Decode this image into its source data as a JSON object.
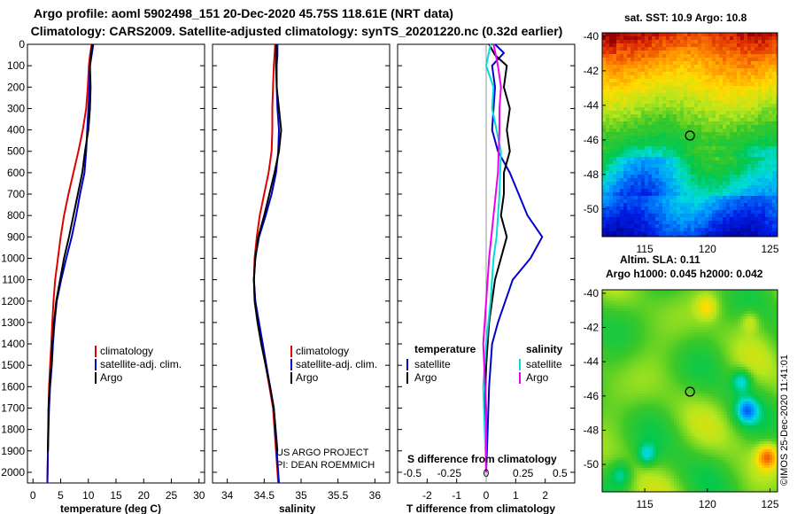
{
  "title_line1": "Argo profile: aoml 5902498_151 20-Dec-2020 45.75S 118.61E (NRT data)",
  "title_line2": "Climatology: CARS2009. Satellite-adjusted climatology: synTS_20201220.nc (0.32d earlier)",
  "credit": [
    "US ARGO PROJECT",
    "PI: DEAN ROEMMICH"
  ],
  "stamp": "©IMOS 25-Dec-2020 11:41:01",
  "colors": {
    "climatology": "#e00000",
    "satellite": "#0000cc",
    "argo": "#000000",
    "sat_salinity": "#00dddd",
    "argo_salinity": "#ee00ee"
  },
  "chart_data": [
    {
      "type": "line",
      "xlabel": "temperature (deg C)",
      "ylabel": "",
      "xlim": [
        -1,
        31
      ],
      "ylim": [
        2050,
        0
      ],
      "xticks": [
        "0",
        "5",
        "10",
        "15",
        "20",
        "25",
        "30"
      ],
      "yticks": [
        "0",
        "100",
        "200",
        "300",
        "400",
        "500",
        "600",
        "700",
        "800",
        "900",
        "1000",
        "1100",
        "1200",
        "1300",
        "1400",
        "1500",
        "1600",
        "1700",
        "1800",
        "1900",
        "2000"
      ],
      "legend": [
        "climatology",
        "satellite-adj. clim.",
        "Argo"
      ],
      "series": [
        {
          "name": "climatology",
          "color": "#e00000",
          "x": [
            10.6,
            10.3,
            10.1,
            9.9,
            9.6,
            9.0,
            8.2,
            7.3,
            6.4,
            5.6,
            5.0,
            4.5,
            4.0,
            3.7,
            3.5,
            3.3,
            3.1,
            2.9,
            2.8,
            2.7,
            2.6
          ],
          "y": [
            0,
            50,
            100,
            200,
            300,
            400,
            500,
            600,
            700,
            800,
            900,
            1000,
            1100,
            1200,
            1300,
            1400,
            1500,
            1600,
            1700,
            1900,
            2050
          ]
        },
        {
          "name": "satellite-adj. clim.",
          "color": "#0000cc",
          "x": [
            10.9,
            10.6,
            10.3,
            10.2,
            10.0,
            9.8,
            9.6,
            9.3,
            8.5,
            7.8,
            7.0,
            6.0,
            5.1,
            4.3,
            3.9,
            3.6,
            3.4,
            3.1,
            2.9,
            2.7,
            2.6
          ],
          "y": [
            0,
            50,
            100,
            200,
            300,
            400,
            500,
            600,
            700,
            800,
            900,
            1000,
            1100,
            1200,
            1300,
            1400,
            1500,
            1600,
            1700,
            1900,
            2050
          ]
        },
        {
          "name": "Argo",
          "color": "#000000",
          "x": [
            10.7,
            10.5,
            10.3,
            10.4,
            10.3,
            10.0,
            9.4,
            8.9,
            8.1,
            7.3,
            6.5,
            5.6,
            4.9,
            4.2,
            3.8,
            3.5,
            3.3,
            3.0,
            2.8,
            2.7
          ],
          "y": [
            0,
            50,
            100,
            200,
            300,
            400,
            500,
            600,
            700,
            800,
            900,
            1000,
            1100,
            1200,
            1300,
            1400,
            1500,
            1600,
            1700,
            1900
          ]
        }
      ]
    },
    {
      "type": "line",
      "xlabel": "salinity",
      "xlim": [
        33.8,
        36.2
      ],
      "ylim": [
        2050,
        0
      ],
      "xticks": [
        "34",
        "34.5",
        "35",
        "35.5",
        "36"
      ],
      "legend": [
        "climatology",
        "satellite-adj. clim.",
        "Argo"
      ],
      "series": [
        {
          "name": "climatology",
          "color": "#e00000",
          "x": [
            34.65,
            34.64,
            34.63,
            34.62,
            34.61,
            34.61,
            34.6,
            34.56,
            34.5,
            34.44,
            34.4,
            34.37,
            34.36,
            34.38,
            34.42,
            34.47,
            34.52,
            34.57,
            34.62,
            34.66,
            34.69
          ],
          "y": [
            0,
            50,
            100,
            200,
            300,
            400,
            500,
            600,
            700,
            800,
            900,
            1000,
            1100,
            1200,
            1300,
            1400,
            1500,
            1600,
            1700,
            1900,
            2050
          ]
        },
        {
          "name": "satellite-adj. clim.",
          "color": "#0000cc",
          "x": [
            34.68,
            34.68,
            34.67,
            34.67,
            34.68,
            34.7,
            34.69,
            34.66,
            34.6,
            34.52,
            34.43,
            34.38,
            34.36,
            34.38,
            34.43,
            34.48,
            34.53,
            34.58,
            34.63,
            34.67,
            34.7
          ],
          "y": [
            0,
            50,
            100,
            200,
            300,
            400,
            500,
            600,
            700,
            800,
            900,
            1000,
            1100,
            1200,
            1300,
            1400,
            1500,
            1600,
            1700,
            1900,
            2050
          ]
        },
        {
          "name": "Argo",
          "color": "#000000",
          "x": [
            34.66,
            34.66,
            34.66,
            34.67,
            34.7,
            34.73,
            34.7,
            34.64,
            34.57,
            34.5,
            34.42,
            34.38,
            34.36,
            34.37,
            34.41,
            34.46,
            34.52,
            34.58,
            34.63,
            34.68
          ],
          "y": [
            0,
            50,
            100,
            200,
            300,
            400,
            500,
            600,
            700,
            800,
            900,
            1000,
            1100,
            1200,
            1300,
            1400,
            1500,
            1600,
            1700,
            1900
          ]
        }
      ]
    },
    {
      "type": "line",
      "xlabel": "T difference from climatology",
      "xlabel_top": "S difference from climatology",
      "xlim": [
        -3,
        3
      ],
      "xlim_top": [
        -0.6,
        0.6
      ],
      "ylim": [
        2050,
        0
      ],
      "xticks": [
        "-2",
        "-1",
        "0",
        "1",
        "2"
      ],
      "xticks_top": [
        "-0.5",
        "-0.25",
        "0",
        "0.25",
        "0.5"
      ],
      "legend_temperature": {
        "heading": "temperature",
        "items": [
          "satellite",
          "Argo"
        ]
      },
      "legend_salinity": {
        "heading": "salinity",
        "items": [
          "satellite",
          "Argo"
        ]
      },
      "series": [
        {
          "name": "temperature satellite",
          "color": "#0000cc",
          "x": [
            0.3,
            0.6,
            0.2,
            0.3,
            0.2,
            0.4,
            0.8,
            1.1,
            1.4,
            1.9,
            1.5,
            0.9,
            0.4,
            0.2,
            0.1,
            0.05,
            0.0
          ],
          "y": [
            0,
            40,
            100,
            200,
            400,
            500,
            600,
            700,
            800,
            900,
            1000,
            1100,
            1300,
            1400,
            1600,
            1800,
            2000
          ]
        },
        {
          "name": "temperature Argo",
          "color": "#000000",
          "x": [
            0.1,
            0.3,
            0.7,
            0.6,
            0.8,
            0.7,
            0.8,
            0.6,
            0.6,
            0.5,
            0.7,
            0.3,
            0.1,
            0.0,
            -0.05,
            0.0
          ],
          "y": [
            0,
            50,
            100,
            200,
            300,
            400,
            500,
            600,
            700,
            800,
            900,
            1100,
            1300,
            1500,
            1700,
            2000
          ]
        },
        {
          "name": "salinity satellite",
          "color": "#00dddd",
          "x": [
            0.03,
            0.0,
            0.05,
            0.04,
            0.07,
            0.1,
            0.09,
            0.07,
            0.05,
            0.03,
            0.0,
            -0.02,
            -0.01,
            0.0
          ],
          "y": [
            0,
            100,
            200,
            300,
            400,
            500,
            700,
            900,
            1000,
            1200,
            1400,
            1600,
            1800,
            2000
          ]
        },
        {
          "name": "salinity Argo",
          "color": "#ee00ee",
          "x": [
            0.05,
            0.08,
            0.1,
            0.09,
            0.09,
            0.08,
            0.05,
            0.02,
            0.0,
            -0.02,
            0.0,
            0.0
          ],
          "y": [
            0,
            100,
            200,
            300,
            400,
            600,
            800,
            1000,
            1200,
            1400,
            1700,
            2000
          ]
        }
      ]
    },
    {
      "type": "heatmap",
      "title": "sat. SST: 10.9 Argo: 10.8",
      "xticks": [
        "115",
        "120",
        "125"
      ],
      "yticks": [
        "-40",
        "-42",
        "-44",
        "-46",
        "-48",
        "-50"
      ],
      "xlim": [
        111.6,
        125.6
      ],
      "ylim": [
        -51.6,
        -39.8
      ],
      "marker": {
        "lon": 118.61,
        "lat": -45.75
      }
    },
    {
      "type": "heatmap",
      "title": "Altim. SLA: 0.11",
      "subtitle": "Argo h1000: 0.045 h2000: 0.042",
      "xticks": [
        "115",
        "120",
        "125"
      ],
      "yticks": [
        "-40",
        "-42",
        "-44",
        "-46",
        "-48",
        "-50"
      ],
      "xlim": [
        111.6,
        125.6
      ],
      "ylim": [
        -51.6,
        -39.8
      ],
      "marker": {
        "lon": 118.61,
        "lat": -45.75
      }
    }
  ]
}
